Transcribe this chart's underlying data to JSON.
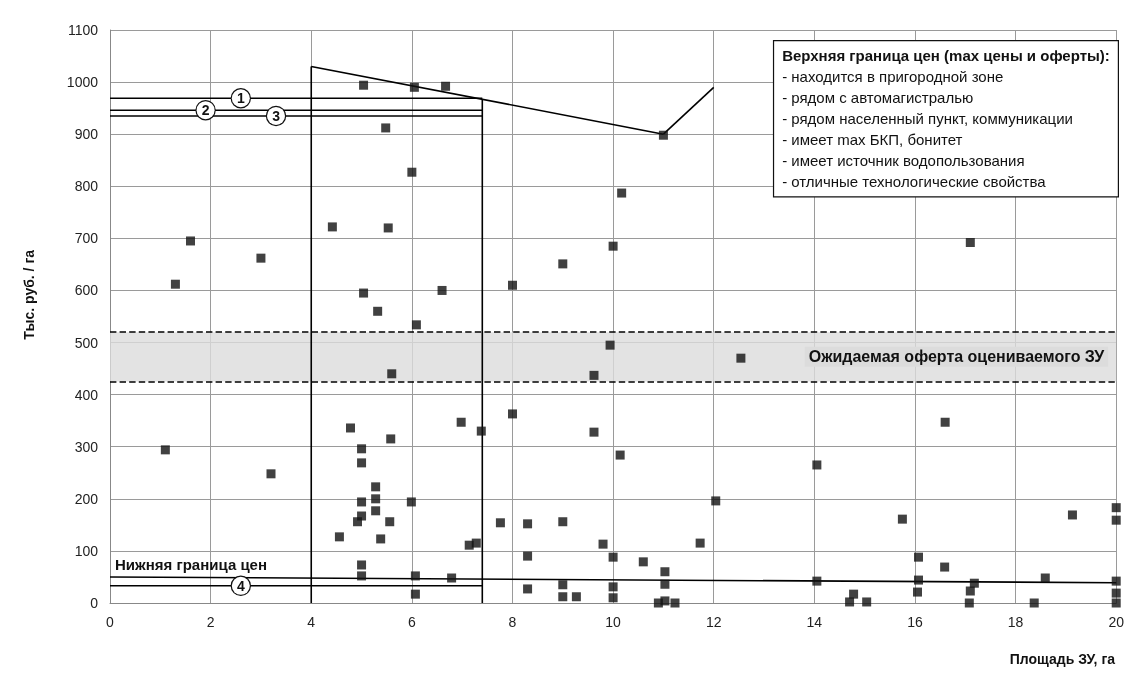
{
  "chart_data": {
    "type": "scatter",
    "xlabel": "Площадь ЗУ, га",
    "ylabel": "Тыс. руб. / га",
    "xlim": [
      0,
      20
    ],
    "xticks": [
      0,
      2,
      4,
      6,
      8,
      10,
      12,
      14,
      16,
      18,
      20
    ],
    "ylim": [
      0,
      1100
    ],
    "yticks": [
      0,
      100,
      200,
      300,
      400,
      500,
      600,
      700,
      800,
      900,
      1000,
      1100
    ],
    "grid": true,
    "series": [
      {
        "color": "#111111",
        "marker": "square",
        "x": [
          1.3,
          1.6,
          3.0,
          1.1,
          3.2,
          5.04,
          6.05,
          6.67,
          5.48,
          6.0,
          4.42,
          5.53,
          5.04,
          5.32,
          6.6,
          6.09,
          5.6,
          4.78,
          5.0,
          5.0,
          5.58,
          5.28,
          5.28,
          5.0,
          5.28,
          5.0,
          4.92,
          5.56,
          4.56,
          5.38,
          5.99,
          6.98,
          7.38,
          7.14,
          7.28,
          5.0,
          5.0,
          6.07,
          6.79,
          6.07,
          8.0,
          7.76,
          8.3,
          8.3,
          8.3,
          9.0,
          9.0,
          9.0,
          9.27,
          9.8,
          10.0,
          10.0,
          10.0,
          10.14,
          9.62,
          9.62,
          9.94,
          10.6,
          11.03,
          11.03,
          11.03,
          10.9,
          11.23,
          11.73,
          12.04,
          12.54,
          14.05,
          14.05,
          14.7,
          14.78,
          15.04,
          15.75,
          16.07,
          16.07,
          16.05,
          16.59,
          16.6,
          17.1,
          17.18,
          17.08,
          18.37,
          18.59,
          19.13,
          20,
          20,
          20,
          20,
          20,
          11.0,
          10.17,
          10.0,
          9.0,
          8.0,
          17.1
        ],
        "values": [
          612,
          695,
          662,
          294,
          248,
          994,
          990,
          992,
          912,
          827,
          722,
          720,
          595,
          560,
          600,
          534,
          440,
          336,
          296,
          269,
          315,
          223,
          200,
          194,
          177,
          167,
          156,
          156,
          127,
          123,
          194,
          347,
          330,
          111,
          115,
          73,
          52,
          52,
          48,
          17,
          363,
          154,
          152,
          90,
          27,
          156,
          35,
          12,
          12,
          113,
          88,
          31,
          10,
          284,
          328,
          437,
          495,
          79,
          60,
          36,
          4,
          0,
          0,
          115,
          196,
          470,
          265,
          42,
          2,
          17,
          2,
          161,
          88,
          44,
          21,
          69,
          347,
          23,
          38,
          0,
          0,
          48,
          169,
          183,
          159,
          42,
          19,
          0,
          898,
          787,
          685,
          651,
          610,
          692
        ]
      },
      {
        "type": "line",
        "color": "#000000",
        "x": [
          4,
          11
        ],
        "values": [
          1030,
          900
        ]
      },
      {
        "type": "line",
        "color": "#000000",
        "x": [
          4,
          4
        ],
        "values": [
          1030,
          0
        ]
      },
      {
        "type": "line",
        "color": "#000000",
        "x": [
          7.4,
          7.4
        ],
        "values": [
          966,
          0
        ]
      },
      {
        "type": "line",
        "color": "#000000",
        "x": [
          0,
          7.4
        ],
        "values": [
          969,
          969
        ]
      },
      {
        "type": "line",
        "color": "#000000",
        "x": [
          0,
          7.4
        ],
        "values": [
          946,
          946
        ]
      },
      {
        "type": "line",
        "color": "#000000",
        "x": [
          0,
          7.4
        ],
        "values": [
          935,
          935
        ]
      },
      {
        "type": "line",
        "color": "#000000",
        "x": [
          0,
          20
        ],
        "values": [
          50,
          39
        ]
      },
      {
        "type": "line",
        "color": "#000000",
        "x": [
          0,
          7.4
        ],
        "values": [
          33,
          33
        ]
      },
      {
        "type": "line",
        "color": "#000000",
        "x": [
          11,
          12
        ],
        "values": [
          900,
          990
        ]
      }
    ],
    "bands": [
      {
        "axis": "y",
        "from": 425,
        "to": 520,
        "label": "Ожидаемая оферта оцениваемого ЗУ",
        "color": "#dcdcdc"
      }
    ],
    "ref_lines": [
      {
        "axis": "y",
        "value": 520,
        "line_style": "dashed",
        "color": "#000000"
      },
      {
        "axis": "y",
        "value": 425,
        "line_style": "dashed",
        "color": "#000000"
      }
    ],
    "annotations": [
      "Верхняя граница цен (max цены и оферты):\n- находится в пригородной зоне\n- рядом с автомагистралью\n- рядом населенный пункт, коммуникации\n- имеет max БКП, бонитет\n- имеет источник водопользования\n- отличные технологические свойства",
      {
        "text": "1",
        "x": 2.6,
        "y": 969
      },
      {
        "text": "2",
        "x": 1.9,
        "y": 946
      },
      {
        "text": "3",
        "x": 3.3,
        "y": 935
      },
      {
        "text": "4",
        "x": 2.6,
        "y": 33
      },
      {
        "text": "Нижняя граница цен",
        "x": 0.1,
        "y": 60
      }
    ]
  }
}
